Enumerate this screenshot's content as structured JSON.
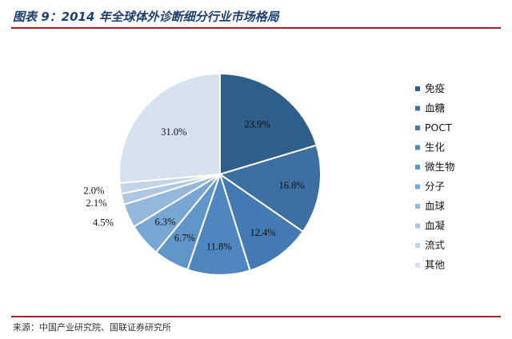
{
  "title": "图表 9：2014 年全球体外诊断细分行业市场格局",
  "source": "来源：中国产业研究院、国联证券研究所",
  "chart_data": {
    "type": "pie",
    "legend_position": "right",
    "slices": [
      {
        "name": "免疫",
        "value": 23.9,
        "label": "23.9%",
        "color": "#2f5e8a"
      },
      {
        "name": "血糖",
        "value": 16.8,
        "label": "16.8%",
        "color": "#3d6fa3"
      },
      {
        "name": "POCT",
        "value": 12.4,
        "label": "12.4%",
        "color": "#4479b3"
      },
      {
        "name": "生化",
        "value": 11.8,
        "label": "11.8%",
        "color": "#4f86c0"
      },
      {
        "name": "微生物",
        "value": 6.7,
        "label": "6.7%",
        "color": "#5f95c9"
      },
      {
        "name": "分子",
        "value": 6.3,
        "label": "6.3%",
        "color": "#78a6d2"
      },
      {
        "name": "血球",
        "value": 4.5,
        "label": "4.5%",
        "color": "#94b8dc"
      },
      {
        "name": "血凝",
        "value": 2.1,
        "label": "2.1%",
        "color": "#adc7e3"
      },
      {
        "name": "流式",
        "value": 2.0,
        "label": "2.0%",
        "color": "#c2d4ea"
      },
      {
        "name": "其他",
        "value": 31.0,
        "label": "31.0%",
        "color": "#d6e1ef"
      }
    ]
  }
}
